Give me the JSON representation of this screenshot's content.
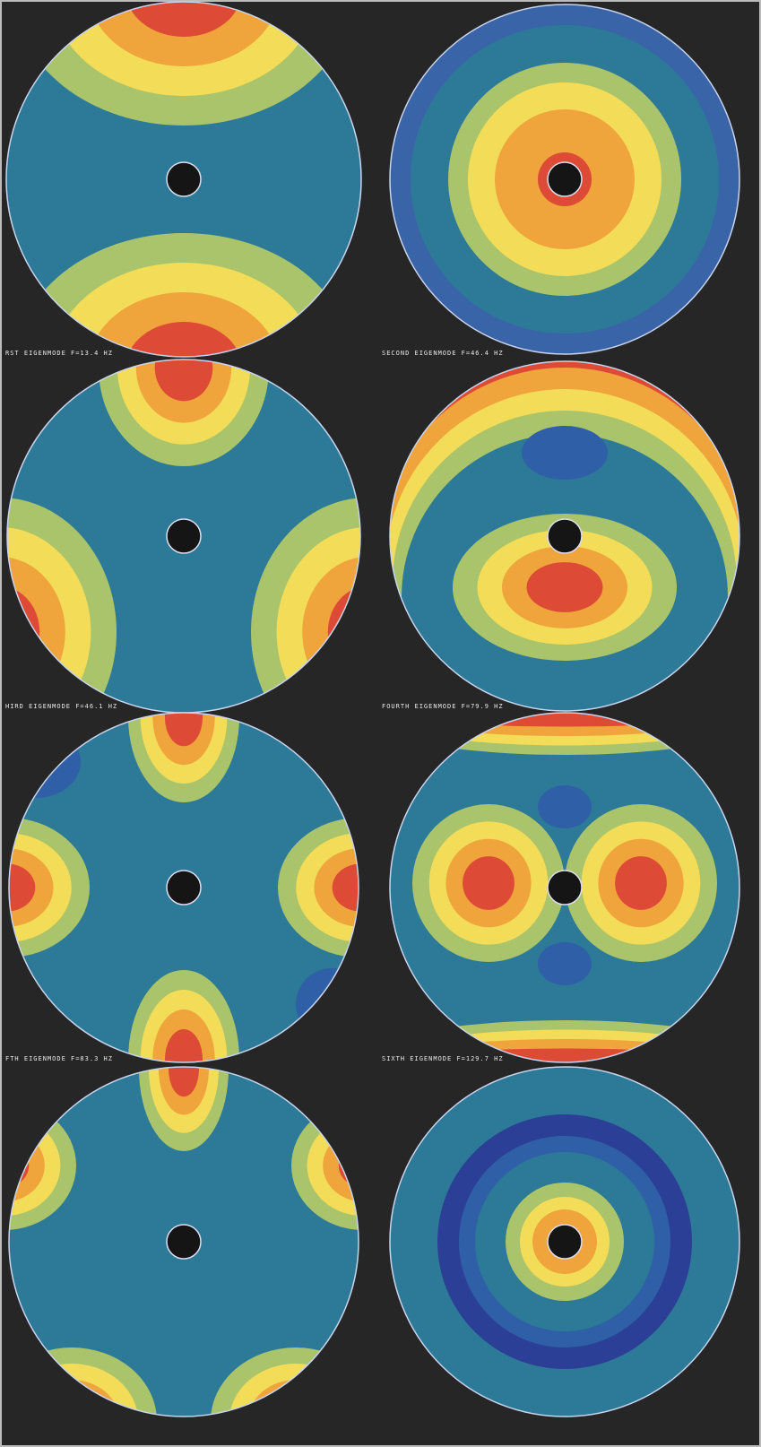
{
  "captions": [
    "RST EIGENMODE F=13.4 HZ",
    "SECOND EIGENMODE F=46.4 HZ",
    "HIRD EIGENMODE F=46.1 HZ",
    "FOURTH EIGENMODE F=79.9 HZ",
    "FTH EIGENMODE F=83.3 HZ",
    "SIXTH EIGENMODE F=129.7 HZ"
  ]
}
